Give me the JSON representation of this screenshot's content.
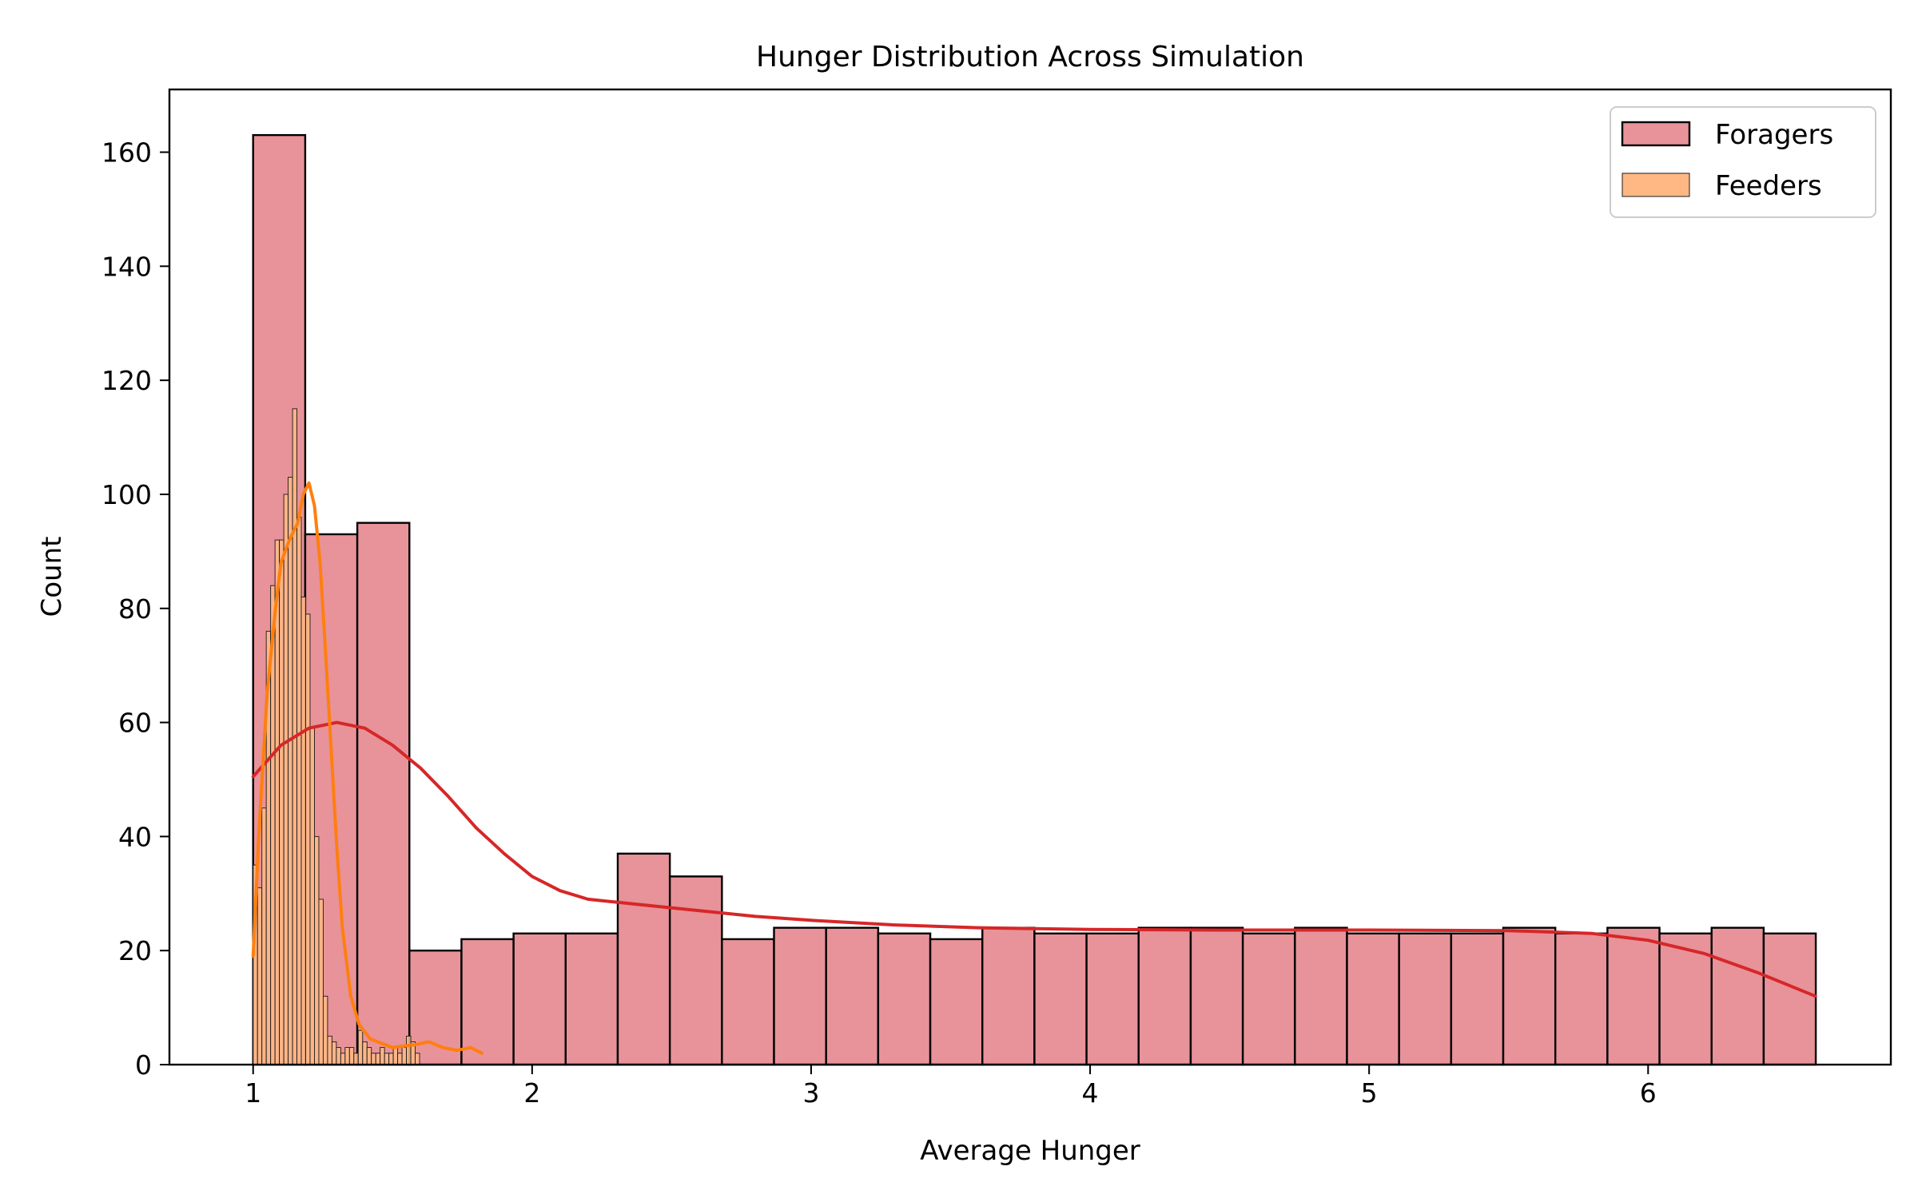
{
  "chart_data": {
    "type": "bar",
    "title": "Hunger Distribution Across Simulation",
    "xlabel": "Average Hunger",
    "ylabel": "Count",
    "xlim": [
      0.7,
      6.87
    ],
    "ylim": [
      0,
      171
    ],
    "xticks": [
      1,
      2,
      3,
      4,
      5,
      6
    ],
    "yticks": [
      0,
      20,
      40,
      60,
      80,
      100,
      120,
      140,
      160
    ],
    "grid": false,
    "legend_position": "top-right",
    "series": [
      {
        "name": "Foragers",
        "color": "#e8929a",
        "edge_color": "#000000",
        "bin_start": 1.0,
        "bin_width": 0.1867,
        "values": [
          163,
          93,
          95,
          20,
          22,
          23,
          23,
          37,
          33,
          22,
          24,
          24,
          23,
          22,
          24,
          23,
          23,
          24,
          24,
          23,
          24,
          23,
          23,
          23,
          24,
          23,
          24,
          23,
          24,
          23
        ],
        "kde_color": "#d62728",
        "kde": [
          [
            1.0,
            50.5
          ],
          [
            1.1,
            56
          ],
          [
            1.2,
            59
          ],
          [
            1.3,
            60
          ],
          [
            1.4,
            59
          ],
          [
            1.5,
            56
          ],
          [
            1.6,
            52
          ],
          [
            1.7,
            47
          ],
          [
            1.8,
            41.5
          ],
          [
            1.9,
            37
          ],
          [
            2.0,
            33
          ],
          [
            2.1,
            30.5
          ],
          [
            2.2,
            29
          ],
          [
            2.4,
            28
          ],
          [
            2.6,
            27
          ],
          [
            2.8,
            26
          ],
          [
            3.0,
            25.3
          ],
          [
            3.3,
            24.5
          ],
          [
            3.6,
            24
          ],
          [
            4.0,
            23.7
          ],
          [
            4.5,
            23.6
          ],
          [
            5.0,
            23.6
          ],
          [
            5.5,
            23.5
          ],
          [
            5.8,
            23
          ],
          [
            6.0,
            21.8
          ],
          [
            6.2,
            19.5
          ],
          [
            6.4,
            16
          ],
          [
            6.6,
            12
          ]
        ]
      },
      {
        "name": "Feeders",
        "color": "#ffb884",
        "edge_color": "#1a1a1a",
        "bin_start": 1.0,
        "bin_width": 0.0157,
        "values": [
          35,
          31,
          45,
          76,
          84,
          92,
          92,
          100,
          103,
          115,
          96,
          82,
          79,
          59,
          40,
          29,
          12,
          5,
          4,
          3,
          2,
          3,
          3,
          2,
          6,
          4,
          3,
          2,
          2,
          3,
          2,
          2,
          3,
          2,
          3,
          5,
          4,
          2
        ],
        "kde_color": "#ff7f0e",
        "kde": [
          [
            1.0,
            19
          ],
          [
            1.02,
            40
          ],
          [
            1.05,
            65
          ],
          [
            1.08,
            80
          ],
          [
            1.1,
            88
          ],
          [
            1.13,
            92
          ],
          [
            1.16,
            95
          ],
          [
            1.18,
            100
          ],
          [
            1.2,
            102
          ],
          [
            1.22,
            98
          ],
          [
            1.24,
            88
          ],
          [
            1.26,
            72
          ],
          [
            1.28,
            55
          ],
          [
            1.3,
            38
          ],
          [
            1.32,
            24
          ],
          [
            1.35,
            12
          ],
          [
            1.38,
            7
          ],
          [
            1.42,
            4.5
          ],
          [
            1.5,
            3
          ],
          [
            1.58,
            3.5
          ],
          [
            1.63,
            4
          ],
          [
            1.68,
            3
          ],
          [
            1.73,
            2.5
          ],
          [
            1.78,
            3
          ],
          [
            1.82,
            2
          ]
        ]
      }
    ]
  }
}
